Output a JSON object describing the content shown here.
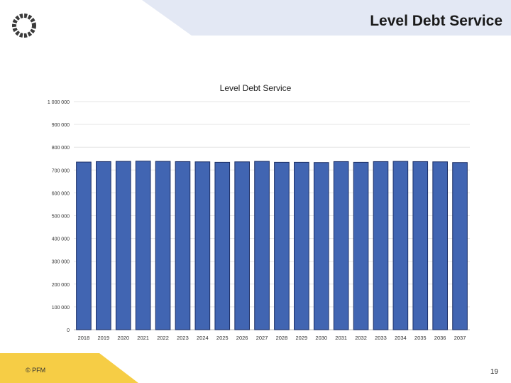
{
  "slide": {
    "title": "Level Debt Service",
    "copyright": "© PFM",
    "page_number": "19"
  },
  "colors": {
    "header_band": "#e3e8f4",
    "footer_band": "#f6cd45",
    "bar_fill": "#4165b2",
    "bar_stroke": "#1c2f66",
    "gridline": "#e6e6e6"
  },
  "icons": {
    "logo": "pfm-ring-logo-icon"
  },
  "chart_data": {
    "type": "bar",
    "title": "Level Debt Service",
    "xlabel": "",
    "ylabel": "",
    "ylim": [
      0,
      1000000
    ],
    "y_ticks": [
      0,
      100000,
      200000,
      300000,
      400000,
      500000,
      600000,
      700000,
      800000,
      900000,
      1000000
    ],
    "y_tick_labels": [
      "0",
      "100 000",
      "200 000",
      "300 000",
      "400 000",
      "500 000",
      "600 000",
      "700 000",
      "800 000",
      "900 000",
      "1 000 000"
    ],
    "grid": true,
    "legend": "none",
    "categories": [
      "2018",
      "2019",
      "2020",
      "2021",
      "2022",
      "2023",
      "2024",
      "2025",
      "2026",
      "2027",
      "2028",
      "2029",
      "2030",
      "2031",
      "2032",
      "2033",
      "2034",
      "2035",
      "2036",
      "2037"
    ],
    "values": [
      735000,
      737000,
      738000,
      739000,
      738000,
      737000,
      736000,
      734000,
      736000,
      738000,
      734000,
      734000,
      733000,
      737000,
      734000,
      737000,
      738000,
      737000,
      736000,
      733000
    ]
  }
}
